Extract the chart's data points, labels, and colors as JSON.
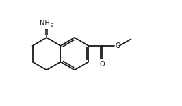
{
  "bg_color": "#ffffff",
  "line_color": "#1a1a1a",
  "lw": 1.3,
  "font_size_main": 7.0,
  "font_size_sub": 5.2,
  "figsize": [
    2.66,
    1.55
  ],
  "dpi": 100,
  "xlim": [
    0.0,
    10.5
  ],
  "ylim": [
    0.5,
    7.0
  ]
}
